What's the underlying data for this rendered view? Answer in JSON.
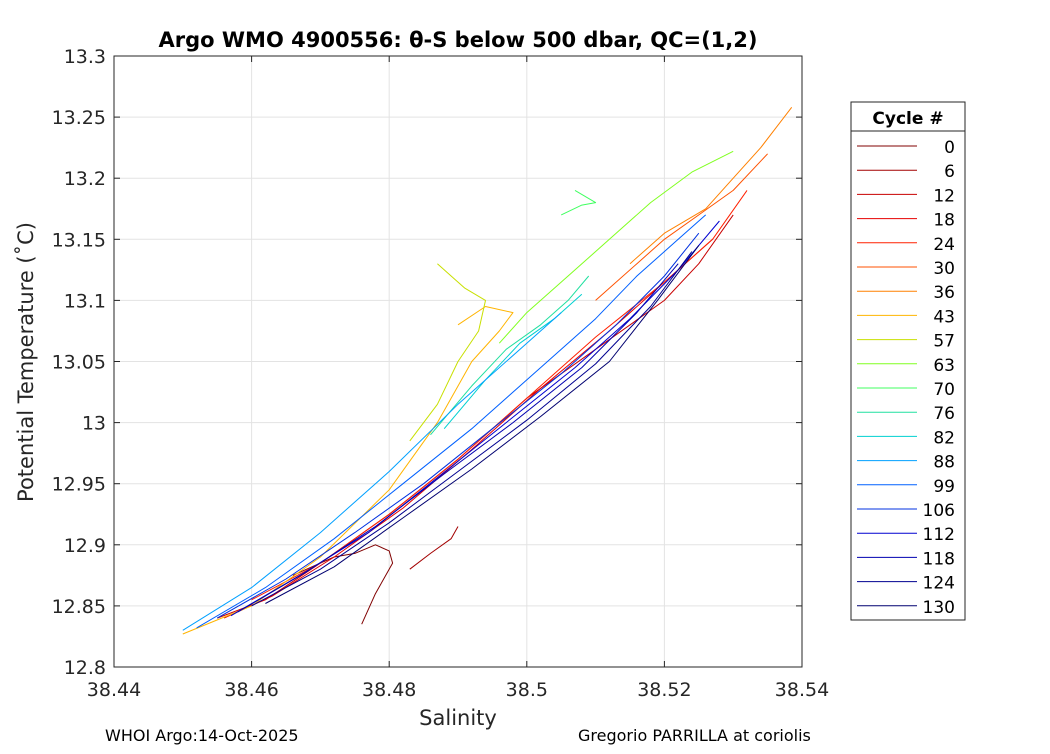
{
  "chart_data": {
    "type": "line",
    "title": "Argo WMO 4900556: θ-S below 500 dbar,  QC=(1,2)",
    "xlabel": "Salinity",
    "ylabel": "Potential Temperature (˚C)",
    "xlim": [
      38.44,
      38.54
    ],
    "ylim": [
      12.8,
      13.3
    ],
    "xticks": [
      "38.44",
      "38.46",
      "38.48",
      "38.5",
      "38.52",
      "38.54"
    ],
    "yticks": [
      "12.8",
      "12.85",
      "12.9",
      "12.95",
      "13",
      "13.05",
      "13.1",
      "13.15",
      "13.2",
      "13.25",
      "13.3"
    ],
    "grid": true,
    "legend": {
      "title": "Cycle #",
      "placement": "outside-right",
      "entries": [
        "0",
        "6",
        "12",
        "18",
        "24",
        "30",
        "36",
        "43",
        "57",
        "63",
        "70",
        "76",
        "82",
        "88",
        "99",
        "106",
        "112",
        "118",
        "124",
        "130"
      ],
      "colors": [
        "#800000",
        "#a30000",
        "#c80000",
        "#e60000",
        "#ff2000",
        "#ff5200",
        "#ff8000",
        "#ffb400",
        "#c8e000",
        "#80ff20",
        "#40ff60",
        "#20e0a0",
        "#00d0d0",
        "#00a0ff",
        "#0060ff",
        "#0030e0",
        "#0000d0",
        "#0000b0",
        "#000090",
        "#000070"
      ]
    },
    "series": [
      {
        "name": "0",
        "x": [
          38.476,
          38.478,
          38.4805,
          38.48,
          38.478,
          38.475,
          38.472,
          38.468,
          38.466
        ],
        "y": [
          12.835,
          12.86,
          12.885,
          12.895,
          12.9,
          12.893,
          12.89,
          12.88,
          12.875
        ]
      },
      {
        "name": "6",
        "x": [
          38.483,
          38.486,
          38.489,
          38.49
        ],
        "y": [
          12.88,
          12.893,
          12.905,
          12.915
        ]
      },
      {
        "name": "12",
        "x": [
          38.455,
          38.462,
          38.47,
          38.48,
          38.49,
          38.5,
          38.51,
          38.52,
          38.525,
          38.53
        ],
        "y": [
          12.84,
          12.855,
          12.885,
          12.925,
          12.97,
          13.02,
          13.06,
          13.1,
          13.13,
          13.17
        ]
      },
      {
        "name": "18",
        "x": [
          38.456,
          38.463,
          38.472,
          38.482,
          38.492,
          38.502,
          38.512,
          38.52,
          38.527
        ],
        "y": [
          12.84,
          12.858,
          12.89,
          12.93,
          12.978,
          13.028,
          13.075,
          13.115,
          13.15
        ]
      },
      {
        "name": "24",
        "x": [
          38.46,
          38.47,
          38.48,
          38.49,
          38.5,
          38.51,
          38.52,
          38.527,
          38.532
        ],
        "y": [
          12.855,
          12.885,
          12.925,
          12.97,
          13.02,
          13.07,
          13.115,
          13.15,
          13.19
        ]
      },
      {
        "name": "30",
        "x": [
          38.51,
          38.516,
          38.52,
          38.525,
          38.53,
          38.535
        ],
        "y": [
          13.1,
          13.13,
          13.15,
          13.17,
          13.19,
          13.22
        ]
      },
      {
        "name": "36",
        "x": [
          38.515,
          38.52,
          38.526,
          38.53,
          38.534,
          38.5385
        ],
        "y": [
          13.13,
          13.155,
          13.175,
          13.2,
          13.225,
          13.258
        ]
      },
      {
        "name": "43",
        "x": [
          38.45,
          38.46,
          38.47,
          38.48,
          38.487,
          38.492,
          38.496,
          38.498,
          38.494,
          38.49
        ],
        "y": [
          12.827,
          12.85,
          12.89,
          12.945,
          13.0,
          13.05,
          13.075,
          13.09,
          13.095,
          13.08
        ]
      },
      {
        "name": "57",
        "x": [
          38.483,
          38.487,
          38.49,
          38.493,
          38.494,
          38.491,
          38.489,
          38.487
        ],
        "y": [
          12.985,
          13.015,
          13.05,
          13.075,
          13.1,
          13.11,
          13.12,
          13.13
        ]
      },
      {
        "name": "63",
        "x": [
          38.496,
          38.5,
          38.506,
          38.512,
          38.518,
          38.524,
          38.53
        ],
        "y": [
          13.065,
          13.09,
          13.12,
          13.15,
          13.18,
          13.205,
          13.222
        ]
      },
      {
        "name": "70",
        "x": [
          38.505,
          38.508,
          38.51,
          38.507
        ],
        "y": [
          13.17,
          13.178,
          13.18,
          13.19
        ]
      },
      {
        "name": "76",
        "x": [
          38.486,
          38.492,
          38.497,
          38.502,
          38.506,
          38.509
        ],
        "y": [
          12.99,
          13.03,
          13.06,
          13.08,
          13.1,
          13.12
        ]
      },
      {
        "name": "82",
        "x": [
          38.488,
          38.494,
          38.499,
          38.504,
          38.508
        ],
        "y": [
          12.995,
          13.035,
          13.065,
          13.085,
          13.105
        ]
      },
      {
        "name": "88",
        "x": [
          38.45,
          38.46,
          38.47,
          38.48,
          38.49,
          38.5,
          38.505
        ],
        "y": [
          12.83,
          12.865,
          12.91,
          12.96,
          13.015,
          13.065,
          13.09
        ]
      },
      {
        "name": "99",
        "x": [
          38.452,
          38.462,
          38.472,
          38.482,
          38.492,
          38.502,
          38.51,
          38.516,
          38.522,
          38.526
        ],
        "y": [
          12.832,
          12.865,
          12.905,
          12.95,
          12.995,
          13.045,
          13.085,
          13.12,
          13.15,
          13.17
        ]
      },
      {
        "name": "106",
        "x": [
          38.455,
          38.465,
          38.475,
          38.485,
          38.495,
          38.505,
          38.513,
          38.52,
          38.525
        ],
        "y": [
          12.84,
          12.872,
          12.91,
          12.95,
          12.995,
          13.04,
          13.08,
          13.12,
          13.155
        ]
      },
      {
        "name": "112",
        "x": [
          38.457,
          38.467,
          38.477,
          38.487,
          38.497,
          38.507,
          38.515,
          38.522,
          38.528
        ],
        "y": [
          12.842,
          12.875,
          12.91,
          12.955,
          13.0,
          13.045,
          13.085,
          13.125,
          13.165
        ]
      },
      {
        "name": "118",
        "x": [
          38.458,
          38.468,
          38.478,
          38.488,
          38.498,
          38.508,
          38.516,
          38.522
        ],
        "y": [
          12.845,
          12.878,
          12.915,
          12.958,
          13.0,
          13.045,
          13.09,
          13.13
        ]
      },
      {
        "name": "124",
        "x": [
          38.46,
          38.47,
          38.48,
          38.49,
          38.5,
          38.51,
          38.518,
          38.524
        ],
        "y": [
          12.85,
          12.88,
          12.918,
          12.96,
          13.002,
          13.048,
          13.095,
          13.14
        ]
      },
      {
        "name": "130",
        "x": [
          38.462,
          38.472,
          38.482,
          38.492,
          38.502,
          38.512,
          38.519,
          38.525
        ],
        "y": [
          12.852,
          12.882,
          12.922,
          12.962,
          13.005,
          13.05,
          13.1,
          13.145
        ]
      }
    ]
  },
  "footer": {
    "left": "WHOI Argo:14-Oct-2025",
    "right": "Gregorio PARRILLA at coriolis"
  }
}
